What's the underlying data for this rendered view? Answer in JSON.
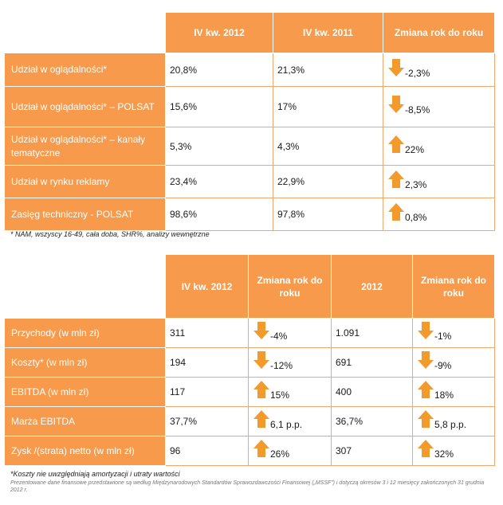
{
  "table1": {
    "headers": [
      "IV kw. 2012",
      "IV kw. 2011",
      "Zmiana rok do roku"
    ],
    "rows": [
      {
        "label": "Udział w oglądalności*",
        "v2012": "20,8%",
        "v2011": "21,3%",
        "change": "-2,3%",
        "direction": "down"
      },
      {
        "label": "Udział w oglądalności* – POLSAT",
        "v2012": "15,6%",
        "v2011": "17%",
        "change": "-8,5%",
        "direction": "down"
      },
      {
        "label": "Udział w oglądalności* – kanały tematyczne",
        "v2012": "5,3%",
        "v2011": "4,3%",
        "change": "22%",
        "direction": "up"
      },
      {
        "label": "Udział w rynku reklamy",
        "v2012": "23,4%",
        "v2011": "22,9%",
        "change": "2,3%",
        "direction": "up"
      },
      {
        "label": "Zasięg techniczny - POLSAT",
        "v2012": "98,6%",
        "v2011": "97,8%",
        "change": "0,8%",
        "direction": "up"
      }
    ],
    "footnote": "* NAM, wszyscy 16-49, cała doba, SHR%, analizy wewnętrzne"
  },
  "table2": {
    "headers": [
      "IV kw. 2012",
      "Zmiana rok do roku",
      "2012",
      "Zmiana rok do roku"
    ],
    "rows": [
      {
        "label": "Przychody (w mln zł)",
        "q4": "311",
        "q4_change": "-4%",
        "q4_dir": "down",
        "year": "1.091",
        "year_change": "-1%",
        "year_dir": "down"
      },
      {
        "label": "Koszty* (w mln zł)",
        "q4": "194",
        "q4_change": "-12%",
        "q4_dir": "down",
        "year": "691",
        "year_change": "-9%",
        "year_dir": "down"
      },
      {
        "label": "EBITDA (w mln zł)",
        "q4": "117",
        "q4_change": "15%",
        "q4_dir": "up",
        "year": "400",
        "year_change": "18%",
        "year_dir": "up"
      },
      {
        "label": "Marża EBITDA",
        "q4": "37,7%",
        "q4_change": "6,1 p.p.",
        "q4_dir": "up",
        "year": "36,7%",
        "year_change": "5,8 p.p.",
        "year_dir": "up"
      },
      {
        "label": "Zysk /(strata) netto (w mln zł)",
        "q4": "96",
        "q4_change": "26%",
        "q4_dir": "up",
        "year": "307",
        "year_change": "32%",
        "year_dir": "up"
      }
    ],
    "footnote": "*Koszty nie uwzględniają amortyzacji i utraty wartości",
    "source_note": "Prezentowane dane finansowe przedstawione są według Międzynarodowych Standardów Sprawozdawczości Finansowej („MSSF”) i dotyczą okresów 3 i 12 miesięcy zakończonych 31 grudnia 2012 r."
  },
  "colors": {
    "accent": "#f79a4b",
    "arrow": "#f39a2d"
  }
}
